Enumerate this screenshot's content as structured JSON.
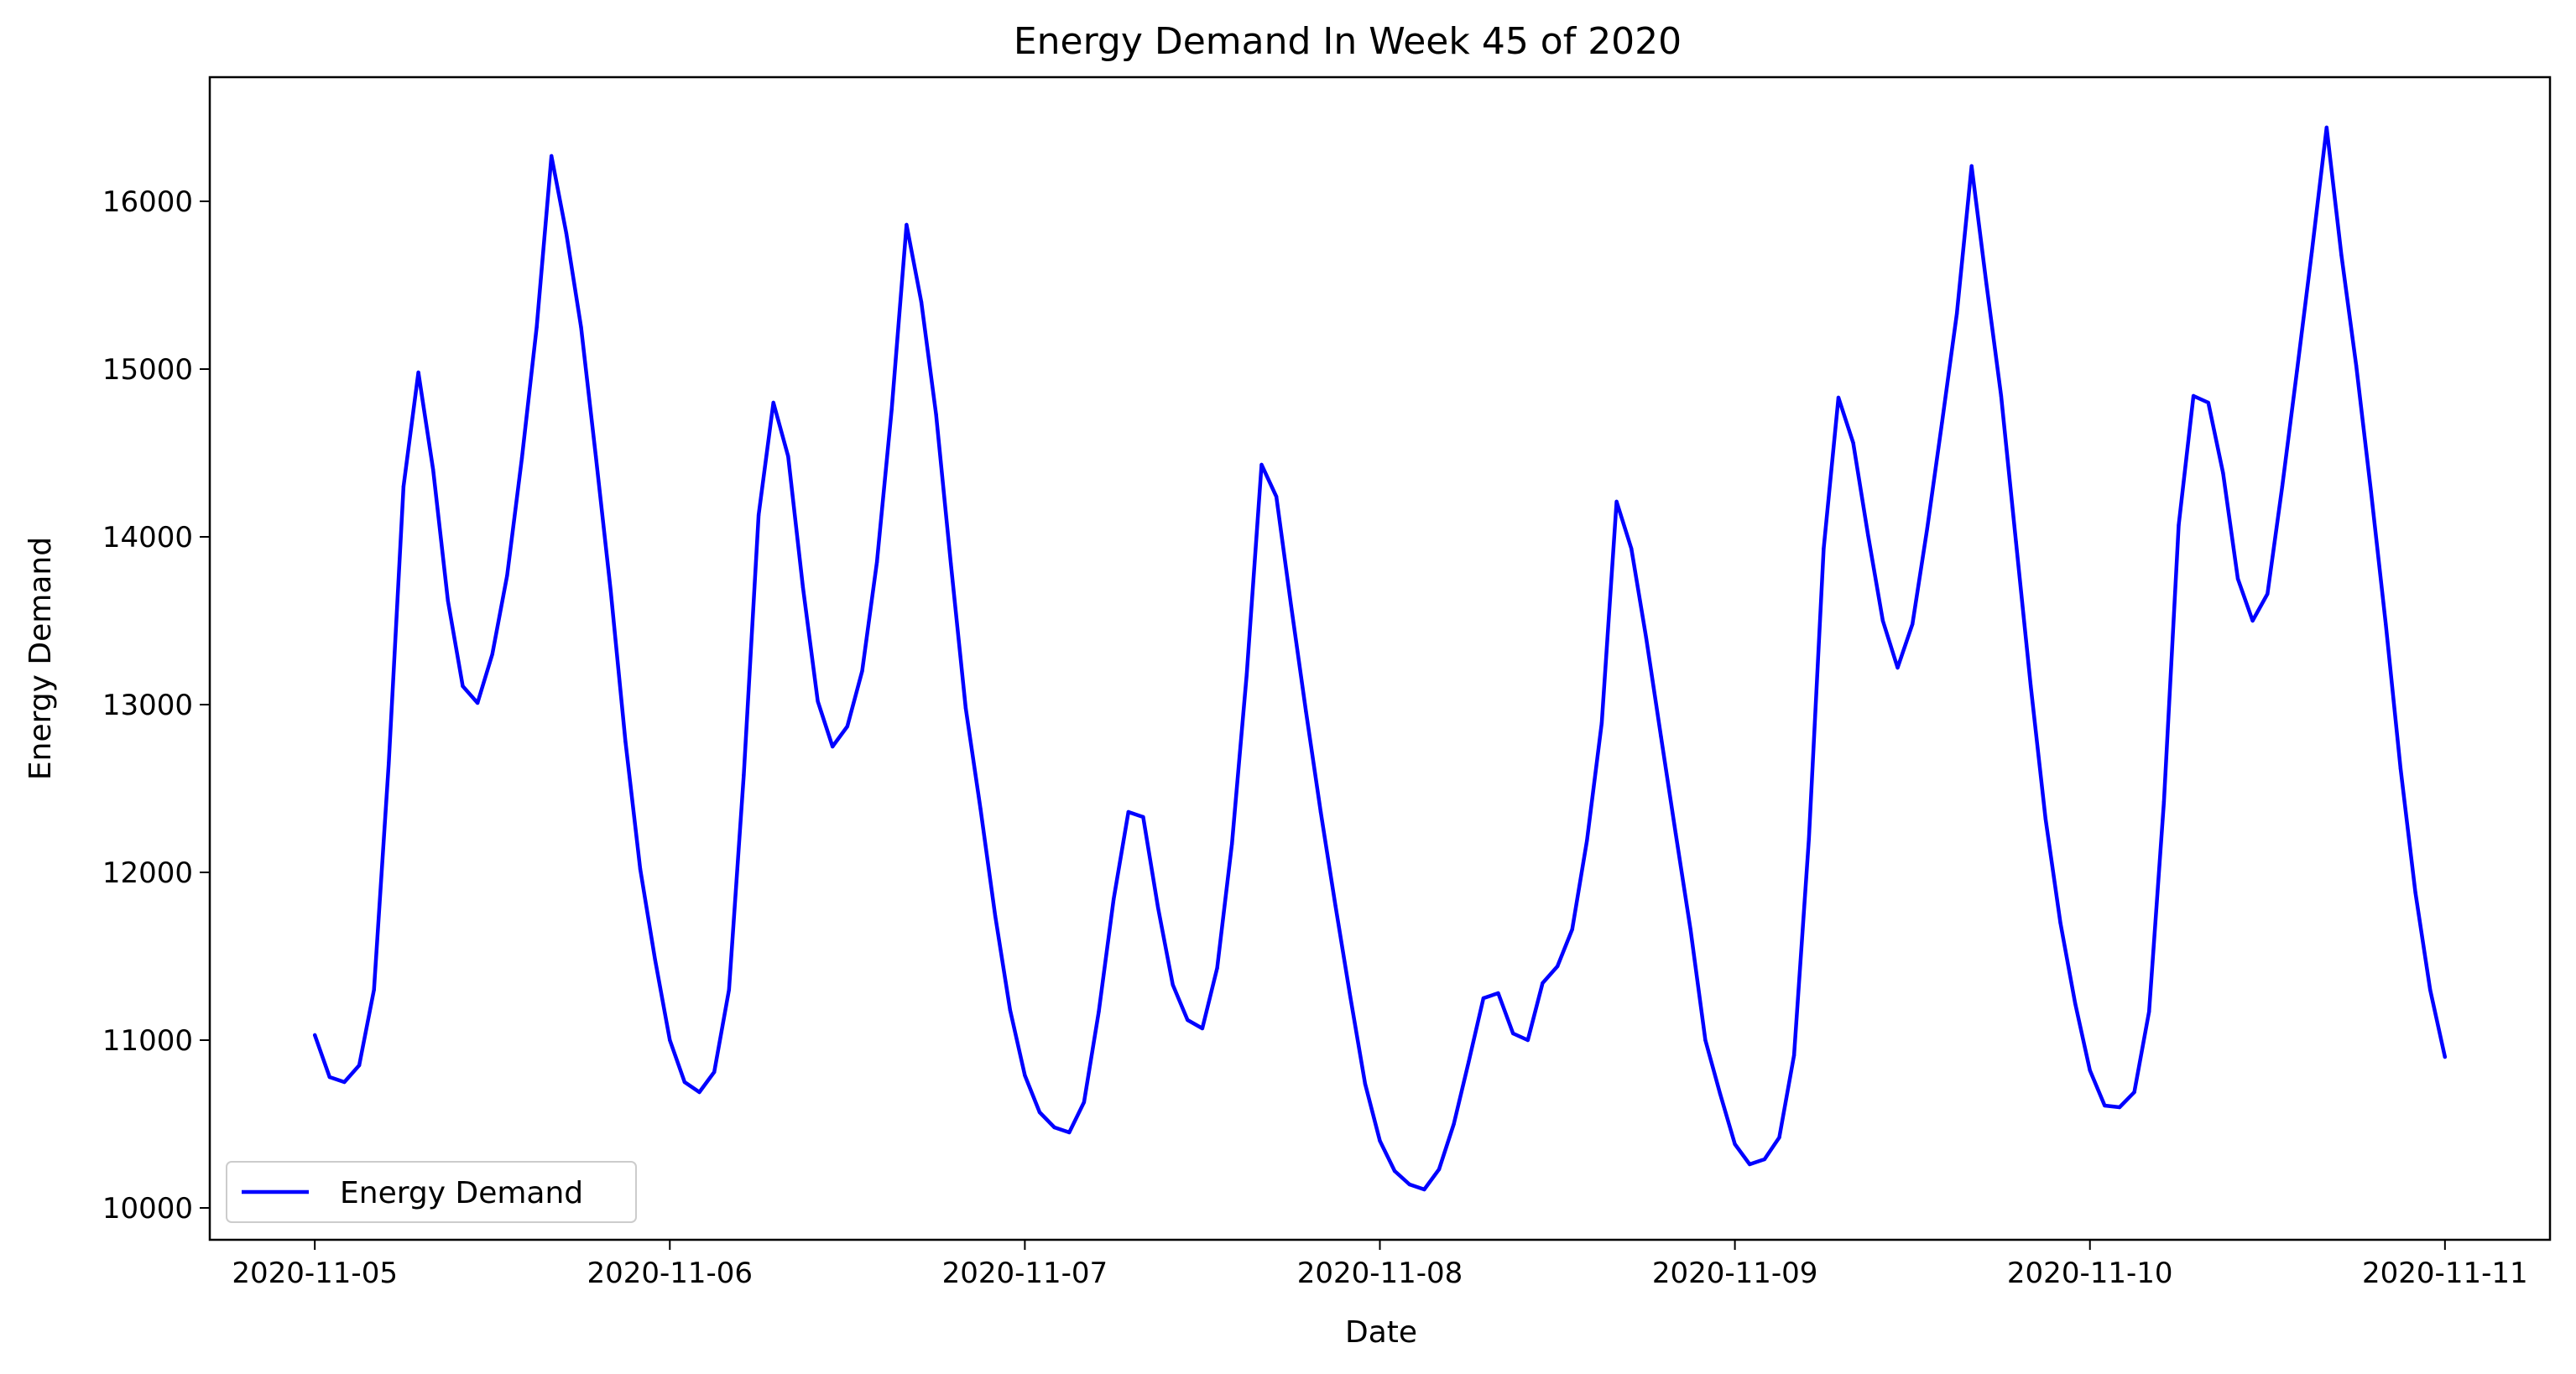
{
  "chart_data": {
    "type": "line",
    "title": "Energy Demand In Week 45 of 2020",
    "xlabel": "Date",
    "ylabel": "Energy Demand",
    "xlim": [
      "2020-11-04 16:54",
      "2020-11-11 07:06"
    ],
    "ylim": [
      9810,
      16740
    ],
    "x_ticks": [
      "2020-11-05",
      "2020-11-06",
      "2020-11-07",
      "2020-11-08",
      "2020-11-09",
      "2020-11-10",
      "2020-11-11"
    ],
    "y_ticks": [
      10000,
      11000,
      12000,
      13000,
      14000,
      15000,
      16000
    ],
    "grid": false,
    "legend_position": "lower-left",
    "series": [
      {
        "name": "Energy Demand",
        "color": "#0000ff",
        "x": [
          "2020-11-05 00:00",
          "2020-11-05 01:00",
          "2020-11-05 02:00",
          "2020-11-05 03:00",
          "2020-11-05 04:00",
          "2020-11-05 05:00",
          "2020-11-05 06:00",
          "2020-11-05 07:00",
          "2020-11-05 08:00",
          "2020-11-05 09:00",
          "2020-11-05 10:00",
          "2020-11-05 11:00",
          "2020-11-05 12:00",
          "2020-11-05 13:00",
          "2020-11-05 14:00",
          "2020-11-05 15:00",
          "2020-11-05 16:00",
          "2020-11-05 17:00",
          "2020-11-05 18:00",
          "2020-11-05 19:00",
          "2020-11-05 20:00",
          "2020-11-05 21:00",
          "2020-11-05 22:00",
          "2020-11-05 23:00",
          "2020-11-06 00:00",
          "2020-11-06 01:00",
          "2020-11-06 02:00",
          "2020-11-06 03:00",
          "2020-11-06 04:00",
          "2020-11-06 05:00",
          "2020-11-06 06:00",
          "2020-11-06 07:00",
          "2020-11-06 08:00",
          "2020-11-06 09:00",
          "2020-11-06 10:00",
          "2020-11-06 11:00",
          "2020-11-06 12:00",
          "2020-11-06 13:00",
          "2020-11-06 14:00",
          "2020-11-06 15:00",
          "2020-11-06 16:00",
          "2020-11-06 17:00",
          "2020-11-06 18:00",
          "2020-11-06 19:00",
          "2020-11-06 20:00",
          "2020-11-06 21:00",
          "2020-11-06 22:00",
          "2020-11-06 23:00",
          "2020-11-07 00:00",
          "2020-11-07 01:00",
          "2020-11-07 02:00",
          "2020-11-07 03:00",
          "2020-11-07 04:00",
          "2020-11-07 05:00",
          "2020-11-07 06:00",
          "2020-11-07 07:00",
          "2020-11-07 08:00",
          "2020-11-07 09:00",
          "2020-11-07 10:00",
          "2020-11-07 11:00",
          "2020-11-07 12:00",
          "2020-11-07 13:00",
          "2020-11-07 14:00",
          "2020-11-07 15:00",
          "2020-11-07 16:00",
          "2020-11-07 17:00",
          "2020-11-07 18:00",
          "2020-11-07 19:00",
          "2020-11-07 20:00",
          "2020-11-07 21:00",
          "2020-11-07 22:00",
          "2020-11-07 23:00",
          "2020-11-08 00:00",
          "2020-11-08 01:00",
          "2020-11-08 02:00",
          "2020-11-08 03:00",
          "2020-11-08 04:00",
          "2020-11-08 05:00",
          "2020-11-08 06:00",
          "2020-11-08 07:00",
          "2020-11-08 08:00",
          "2020-11-08 09:00",
          "2020-11-08 10:00",
          "2020-11-08 11:00",
          "2020-11-08 12:00",
          "2020-11-08 13:00",
          "2020-11-08 14:00",
          "2020-11-08 15:00",
          "2020-11-08 16:00",
          "2020-11-08 17:00",
          "2020-11-08 18:00",
          "2020-11-08 19:00",
          "2020-11-08 20:00",
          "2020-11-08 21:00",
          "2020-11-08 22:00",
          "2020-11-08 23:00",
          "2020-11-09 00:00",
          "2020-11-09 01:00",
          "2020-11-09 02:00",
          "2020-11-09 03:00",
          "2020-11-09 04:00",
          "2020-11-09 05:00",
          "2020-11-09 06:00",
          "2020-11-09 07:00",
          "2020-11-09 08:00",
          "2020-11-09 09:00",
          "2020-11-09 10:00",
          "2020-11-09 11:00",
          "2020-11-09 12:00",
          "2020-11-09 13:00",
          "2020-11-09 14:00",
          "2020-11-09 15:00",
          "2020-11-09 16:00",
          "2020-11-09 17:00",
          "2020-11-09 18:00",
          "2020-11-09 19:00",
          "2020-11-09 20:00",
          "2020-11-09 21:00",
          "2020-11-09 22:00",
          "2020-11-09 23:00",
          "2020-11-10 00:00",
          "2020-11-10 01:00",
          "2020-11-10 02:00",
          "2020-11-10 03:00",
          "2020-11-10 04:00",
          "2020-11-10 05:00",
          "2020-11-10 06:00",
          "2020-11-10 07:00",
          "2020-11-10 08:00",
          "2020-11-10 09:00",
          "2020-11-10 10:00",
          "2020-11-10 11:00",
          "2020-11-10 12:00",
          "2020-11-10 13:00",
          "2020-11-10 14:00",
          "2020-11-10 15:00",
          "2020-11-10 16:00",
          "2020-11-10 17:00",
          "2020-11-10 18:00",
          "2020-11-10 19:00",
          "2020-11-10 20:00",
          "2020-11-10 21:00",
          "2020-11-10 22:00",
          "2020-11-10 23:00",
          "2020-11-11 00:00"
        ],
        "y": [
          11030,
          10780,
          10750,
          10850,
          11300,
          12650,
          14300,
          14980,
          14400,
          13620,
          13110,
          13010,
          13300,
          13770,
          14470,
          15250,
          16270,
          15810,
          15250,
          14480,
          13680,
          12780,
          12020,
          11480,
          11000,
          10750,
          10690,
          10810,
          11300,
          12580,
          14130,
          14800,
          14480,
          13700,
          13020,
          12750,
          12870,
          13200,
          13850,
          14760,
          15860,
          15400,
          14730,
          13840,
          12980,
          12380,
          11740,
          11180,
          10790,
          10570,
          10480,
          10450,
          10630,
          11170,
          11840,
          12360,
          12330,
          11790,
          11330,
          11120,
          11070,
          11430,
          12170,
          13180,
          14430,
          14240,
          13590,
          12960,
          12360,
          11800,
          11260,
          10740,
          10400,
          10220,
          10140,
          10110,
          10230,
          10500,
          10870,
          11250,
          11280,
          11040,
          11000,
          11340,
          11440,
          11660,
          12190,
          12890,
          14210,
          13930,
          13400,
          12810,
          12230,
          11660,
          11000,
          10680,
          10380,
          10260,
          10290,
          10420,
          10910,
          12200,
          13930,
          14830,
          14560,
          14010,
          13500,
          13220,
          13480,
          14050,
          14680,
          15330,
          16210,
          15510,
          14840,
          13970,
          13110,
          12320,
          11700,
          11220,
          10820,
          10610,
          10600,
          10690,
          11170,
          12420,
          14070,
          14840,
          14800,
          14380,
          13750,
          13500,
          13660,
          14300,
          14990,
          15700,
          16440,
          15680,
          15020,
          14270,
          13480,
          12620,
          11880,
          11300,
          10900
        ]
      }
    ]
  }
}
